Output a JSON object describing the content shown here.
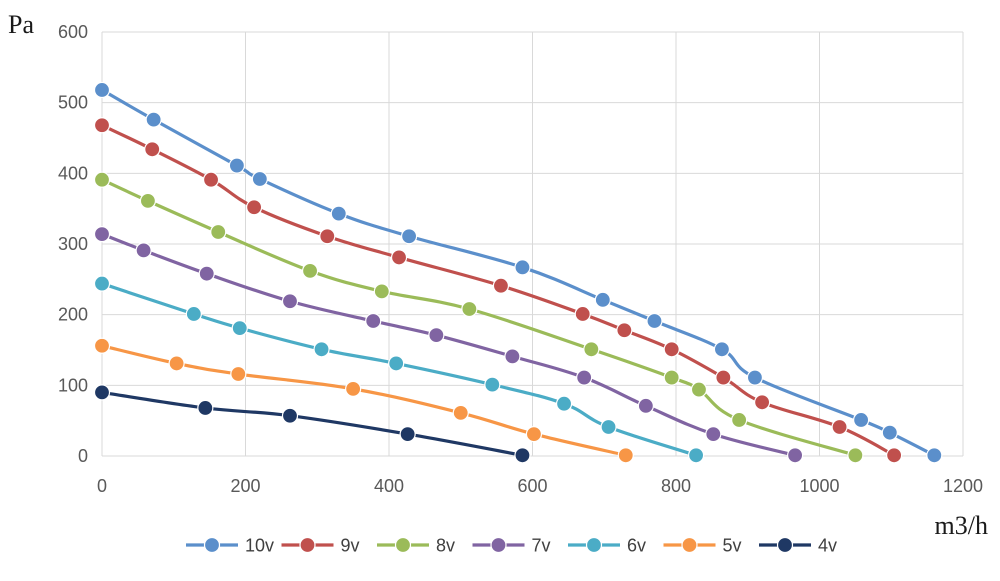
{
  "chart_data": {
    "type": "line",
    "title": "",
    "xlabel": "m3/h",
    "ylabel": "Pa",
    "xlim": [
      0,
      1200
    ],
    "ylim": [
      0,
      600
    ],
    "xticks": [
      0,
      200,
      400,
      600,
      800,
      1000,
      1200
    ],
    "yticks": [
      0,
      100,
      200,
      300,
      400,
      500,
      600
    ],
    "grid": true,
    "legend_position": "bottom",
    "series": [
      {
        "name": "10v",
        "color": "#5B8FCB",
        "points": [
          [
            0,
            518
          ],
          [
            72,
            476
          ],
          [
            188,
            411
          ],
          [
            220,
            392
          ],
          [
            330,
            343
          ],
          [
            428,
            311
          ],
          [
            586,
            267
          ],
          [
            698,
            221
          ],
          [
            770,
            191
          ],
          [
            864,
            151
          ],
          [
            910,
            111
          ],
          [
            1058,
            51
          ],
          [
            1098,
            33
          ],
          [
            1160,
            1
          ]
        ]
      },
      {
        "name": "9v",
        "color": "#C0504D",
        "points": [
          [
            0,
            468
          ],
          [
            70,
            434
          ],
          [
            152,
            391
          ],
          [
            212,
            352
          ],
          [
            314,
            311
          ],
          [
            414,
            281
          ],
          [
            556,
            241
          ],
          [
            670,
            201
          ],
          [
            728,
            178
          ],
          [
            794,
            151
          ],
          [
            866,
            111
          ],
          [
            920,
            76
          ],
          [
            1028,
            41
          ],
          [
            1104,
            1
          ]
        ]
      },
      {
        "name": "8v",
        "color": "#9BBB59",
        "points": [
          [
            0,
            391
          ],
          [
            64,
            361
          ],
          [
            162,
            317
          ],
          [
            290,
            262
          ],
          [
            390,
            233
          ],
          [
            512,
            208
          ],
          [
            682,
            151
          ],
          [
            794,
            111
          ],
          [
            832,
            94
          ],
          [
            888,
            51
          ],
          [
            1050,
            1
          ]
        ]
      },
      {
        "name": "7v",
        "color": "#8064A2",
        "points": [
          [
            0,
            314
          ],
          [
            58,
            291
          ],
          [
            146,
            258
          ],
          [
            262,
            219
          ],
          [
            378,
            191
          ],
          [
            466,
            171
          ],
          [
            572,
            141
          ],
          [
            672,
            111
          ],
          [
            758,
            71
          ],
          [
            852,
            31
          ],
          [
            966,
            1
          ]
        ]
      },
      {
        "name": "6v",
        "color": "#4BACC6",
        "points": [
          [
            0,
            244
          ],
          [
            128,
            201
          ],
          [
            192,
            181
          ],
          [
            306,
            151
          ],
          [
            410,
            131
          ],
          [
            544,
            101
          ],
          [
            644,
            74
          ],
          [
            706,
            41
          ],
          [
            828,
            1
          ]
        ]
      },
      {
        "name": "5v",
        "color": "#F79646",
        "points": [
          [
            0,
            156
          ],
          [
            104,
            131
          ],
          [
            190,
            116
          ],
          [
            350,
            95
          ],
          [
            500,
            61
          ],
          [
            602,
            31
          ],
          [
            730,
            1
          ]
        ]
      },
      {
        "name": "4v",
        "color": "#1F3864",
        "points": [
          [
            0,
            90
          ],
          [
            144,
            68
          ],
          [
            262,
            57
          ],
          [
            426,
            31
          ],
          [
            586,
            1
          ]
        ]
      }
    ]
  }
}
